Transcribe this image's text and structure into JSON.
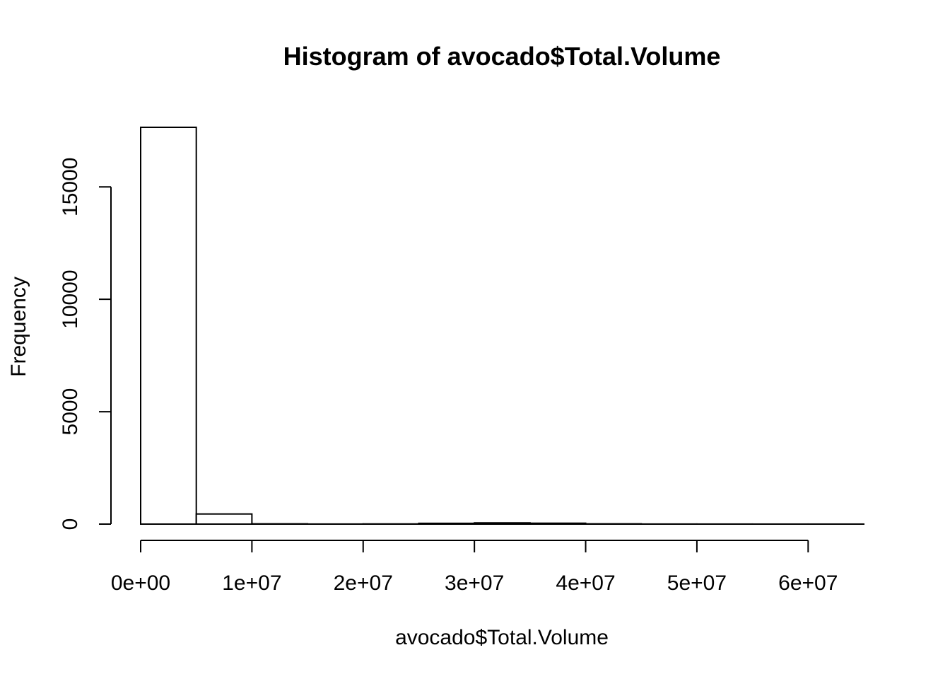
{
  "chart_data": {
    "type": "bar",
    "title": "Histogram of avocado$Total.Volume",
    "xlabel": "avocado$Total.Volume",
    "ylabel": "Frequency",
    "bin_edges": [
      0,
      5000000,
      10000000,
      15000000,
      20000000,
      25000000,
      30000000,
      35000000,
      40000000,
      45000000,
      50000000,
      55000000,
      60000000,
      65000000
    ],
    "values": [
      17650,
      450,
      12,
      3,
      8,
      35,
      55,
      40,
      12,
      3,
      2,
      1,
      1
    ],
    "x_ticks": [
      {
        "value": 0,
        "label": "0e+00"
      },
      {
        "value": 10000000,
        "label": "1e+07"
      },
      {
        "value": 20000000,
        "label": "2e+07"
      },
      {
        "value": 30000000,
        "label": "3e+07"
      },
      {
        "value": 40000000,
        "label": "4e+07"
      },
      {
        "value": 50000000,
        "label": "5e+07"
      },
      {
        "value": 60000000,
        "label": "6e+07"
      }
    ],
    "y_ticks": [
      {
        "value": 0,
        "label": "0"
      },
      {
        "value": 5000,
        "label": "5000"
      },
      {
        "value": 10000,
        "label": "10000"
      },
      {
        "value": 15000,
        "label": "15000"
      }
    ],
    "xlim": [
      0,
      65000000
    ],
    "ylim": [
      0,
      17650
    ],
    "grid": false,
    "colors": {
      "bar_fill": "#ffffff",
      "stroke": "#000000",
      "background": "#ffffff"
    }
  }
}
